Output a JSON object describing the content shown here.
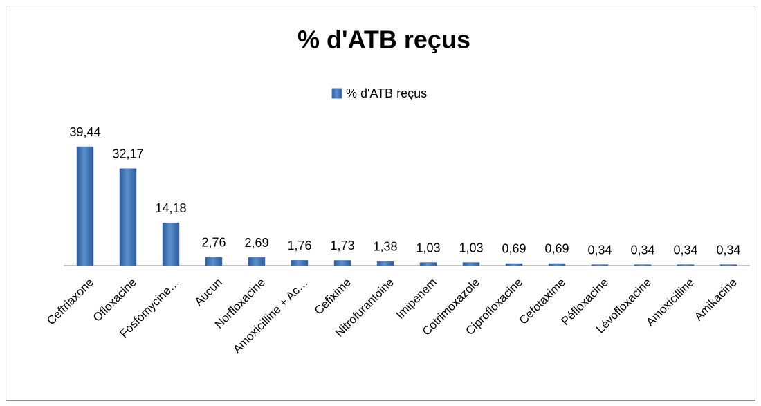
{
  "chart_data": {
    "type": "bar",
    "title": "% d'ATB reçus",
    "series": [
      {
        "name": "% d'ATB reçus",
        "color": "#4f81bd",
        "values": [
          39.44,
          32.17,
          14.18,
          2.76,
          2.69,
          1.76,
          1.73,
          1.38,
          1.03,
          1.03,
          0.69,
          0.69,
          0.34,
          0.34,
          0.34,
          0.34
        ],
        "value_labels": [
          "39,44",
          "32,17",
          "14,18",
          "2,76",
          "2,69",
          "1,76",
          "1,73",
          "1,38",
          "1,03",
          "1,03",
          "0,69",
          "0,69",
          "0,34",
          "0,34",
          "0,34",
          "0,34"
        ]
      }
    ],
    "categories": [
      "Ceftriaxone",
      "Ofloxacine",
      "Fosfomycine…",
      "Aucun",
      "Norfloxacine",
      "Amoxicilline + Ac…",
      "Cefixime",
      "Nitrofurantoine",
      "Imipenem",
      "Cotrimoxazole",
      "Ciprofloxacine",
      "Cefotaxime",
      "Péfloxacine",
      "Lévofloxacine",
      "Amoxicilline",
      "Amikacine"
    ],
    "legend": "top"
  }
}
